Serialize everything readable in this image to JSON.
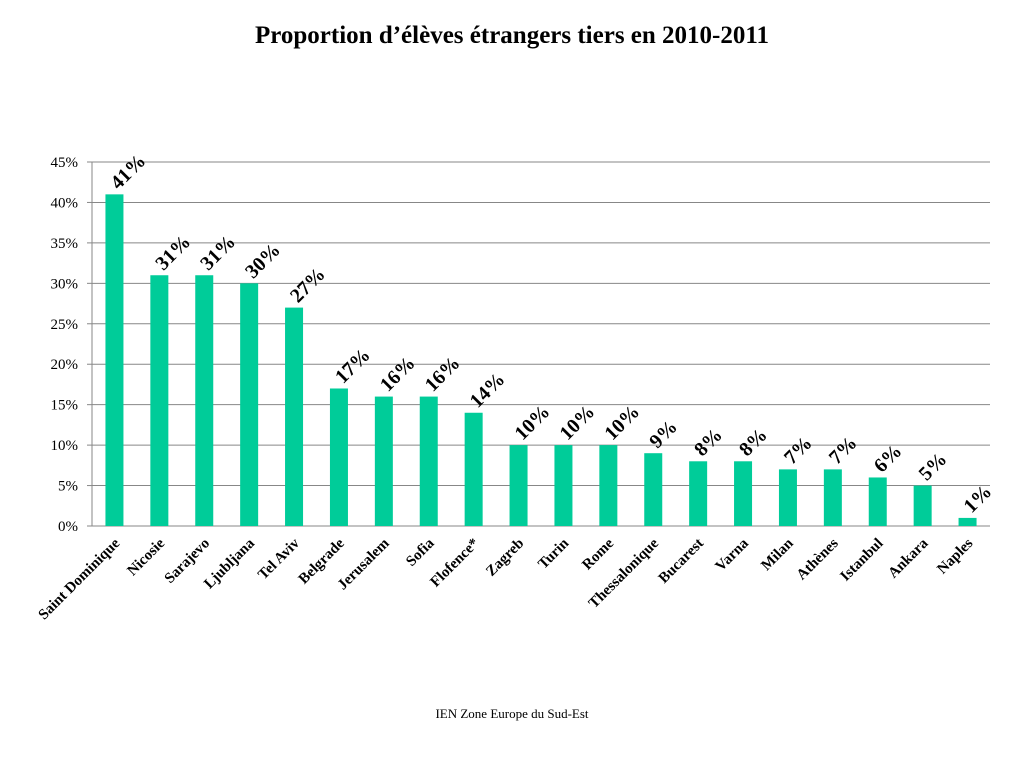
{
  "chart_data": {
    "type": "bar",
    "title": "Proportion d’élèves étrangers tiers en 2010-2011",
    "categories": [
      "Saint Dominique",
      "Nicosie",
      "Sarajevo",
      "Ljubljana",
      "Tel Aviv",
      "Belgrade",
      "Jerusalem",
      "Sofia",
      "Flofence*",
      "Zagreb",
      "Turin",
      "Rome",
      "Thessalonique",
      "Bucarest",
      "Varna",
      "Milan",
      "Athènes",
      "Istanbul",
      "Ankara",
      "Naples"
    ],
    "values": [
      41,
      31,
      31,
      30,
      27,
      17,
      16,
      16,
      14,
      10,
      10,
      10,
      9,
      8,
      8,
      7,
      7,
      6,
      5,
      1
    ],
    "data_labels": [
      "41%",
      "31%",
      "31%",
      "30%",
      "27%",
      "17%",
      "16%",
      "16%",
      "14%",
      "10%",
      "10%",
      "10%",
      "9%",
      "8%",
      "8%",
      "7%",
      "7%",
      "6%",
      "5%",
      "1%"
    ],
    "y_ticks": [
      0,
      5,
      10,
      15,
      20,
      25,
      30,
      35,
      40,
      45
    ],
    "y_tick_labels": [
      "0%",
      "5%",
      "10%",
      "15%",
      "20%",
      "25%",
      "30%",
      "35%",
      "40%",
      "45%"
    ],
    "ylim": [
      0,
      45
    ],
    "grid": true,
    "legend": "none",
    "bar_color": "#00CC99",
    "grid_color": "#878787"
  },
  "footer": "IEN Zone Europe du Sud-Est"
}
